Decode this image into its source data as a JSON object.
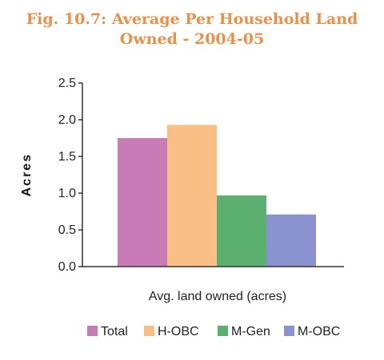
{
  "title_line1": "Fig. 10.7: Average Per Household Land",
  "title_line2": "Owned - 2004-05",
  "chart_data": {
    "type": "bar",
    "title": "Fig. 10.7: Average Per Household Land Owned - 2004-05",
    "xlabel": "Avg. land owned (acres)",
    "ylabel": "Acres",
    "ylim": [
      0,
      2.5
    ],
    "yticks": [
      "0.0",
      "0.5",
      "1.0",
      "1.5",
      "2.0",
      "2.5"
    ],
    "grid": false,
    "legend_position": "bottom",
    "series": [
      {
        "name": "Total",
        "values": [
          1.75
        ],
        "color": "#c97bb8"
      },
      {
        "name": "H-OBC",
        "values": [
          1.93
        ],
        "color": "#f9bf85"
      },
      {
        "name": "M-Gen",
        "values": [
          0.97
        ],
        "color": "#5bb06f"
      },
      {
        "name": "M-OBC",
        "values": [
          0.71
        ],
        "color": "#8a92cf"
      }
    ]
  }
}
